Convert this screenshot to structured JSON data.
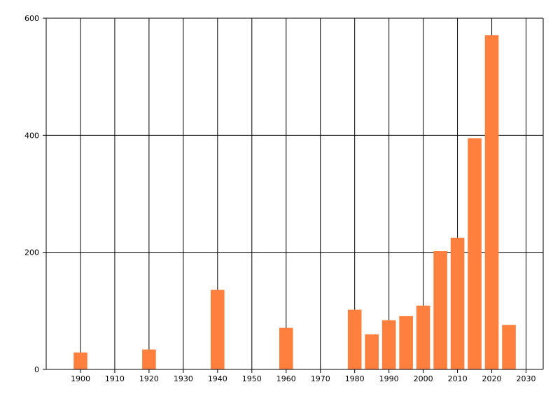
{
  "chart_data": {
    "type": "bar",
    "title": "",
    "xlabel": "",
    "ylabel": "",
    "xlim": [
      1890,
      2035
    ],
    "ylim": [
      0,
      600
    ],
    "x_ticks": [
      1900,
      1910,
      1920,
      1930,
      1940,
      1950,
      1960,
      1970,
      1980,
      1990,
      2000,
      2010,
      2020,
      2030
    ],
    "y_ticks": [
      0,
      200,
      400,
      600
    ],
    "grid": true,
    "bar_color": "#FF7F3F",
    "bar_width_years": 4,
    "points": [
      {
        "x": 1900,
        "y": 29
      },
      {
        "x": 1920,
        "y": 34
      },
      {
        "x": 1940,
        "y": 136
      },
      {
        "x": 1960,
        "y": 71
      },
      {
        "x": 1980,
        "y": 102
      },
      {
        "x": 1985,
        "y": 60
      },
      {
        "x": 1990,
        "y": 84
      },
      {
        "x": 1995,
        "y": 91
      },
      {
        "x": 2000,
        "y": 109
      },
      {
        "x": 2005,
        "y": 202
      },
      {
        "x": 2010,
        "y": 225
      },
      {
        "x": 2015,
        "y": 395
      },
      {
        "x": 2020,
        "y": 571
      },
      {
        "x": 2025,
        "y": 76
      }
    ]
  }
}
